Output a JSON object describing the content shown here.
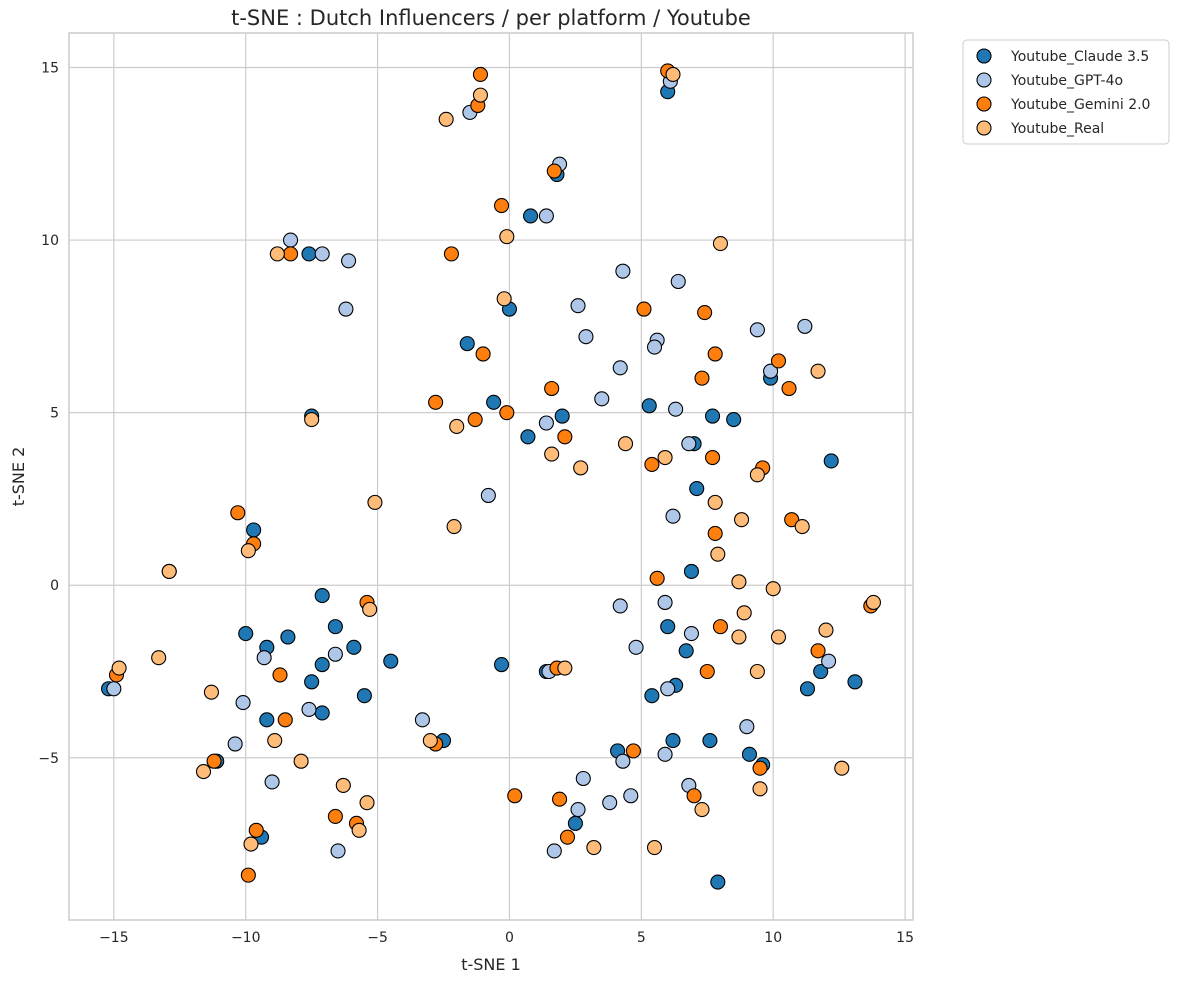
{
  "chart_data": {
    "type": "scatter",
    "title": "t-SNE : Dutch Influencers / per platform / Youtube",
    "xlabel": "t-SNE 1",
    "ylabel": "t-SNE 2",
    "xlim": [
      -16.7,
      15.3
    ],
    "ylim": [
      -9.7,
      16.0
    ],
    "x_ticks": [
      -15,
      -10,
      -5,
      0,
      5,
      10,
      15
    ],
    "y_ticks": [
      -5,
      0,
      5,
      10,
      15
    ],
    "x_tick_labels": [
      "−15",
      "−10",
      "−5",
      "0",
      "5",
      "10",
      "15"
    ],
    "y_tick_labels": [
      "−5",
      "0",
      "5",
      "10",
      "15"
    ],
    "grid": true,
    "legend_position": "outside-top-right",
    "series": [
      {
        "name": "Youtube_Claude 3.5",
        "color": "#1f77b4",
        "points": [
          [
            6.0,
            14.3
          ],
          [
            1.8,
            11.9
          ],
          [
            0.8,
            10.7
          ],
          [
            -7.6,
            9.6
          ],
          [
            0.0,
            8.0
          ],
          [
            -1.6,
            7.0
          ],
          [
            -0.6,
            5.3
          ],
          [
            2.0,
            4.9
          ],
          [
            5.3,
            5.2
          ],
          [
            7.7,
            4.9
          ],
          [
            8.5,
            4.8
          ],
          [
            0.7,
            4.3
          ],
          [
            7.0,
            4.1
          ],
          [
            9.9,
            6.0
          ],
          [
            12.2,
            3.6
          ],
          [
            7.1,
            2.8
          ],
          [
            6.9,
            0.4
          ],
          [
            -7.5,
            4.9
          ],
          [
            -9.7,
            1.6
          ],
          [
            -7.1,
            -0.3
          ],
          [
            -10.0,
            -1.4
          ],
          [
            -9.2,
            -1.8
          ],
          [
            -8.4,
            -1.5
          ],
          [
            -6.6,
            -1.2
          ],
          [
            -5.9,
            -1.8
          ],
          [
            -7.1,
            -2.3
          ],
          [
            -7.5,
            -2.8
          ],
          [
            -4.5,
            -2.2
          ],
          [
            -5.5,
            -3.2
          ],
          [
            -9.2,
            -3.9
          ],
          [
            -7.1,
            -3.7
          ],
          [
            -15.2,
            -3.0
          ],
          [
            -11.1,
            -5.1
          ],
          [
            -9.4,
            -7.3
          ],
          [
            -2.5,
            -4.5
          ],
          [
            -0.3,
            -2.3
          ],
          [
            1.4,
            -2.5
          ],
          [
            5.4,
            -3.2
          ],
          [
            6.3,
            -2.9
          ],
          [
            6.7,
            -1.9
          ],
          [
            6.0,
            -1.2
          ],
          [
            4.1,
            -4.8
          ],
          [
            6.2,
            -4.5
          ],
          [
            7.6,
            -4.5
          ],
          [
            9.1,
            -4.9
          ],
          [
            9.6,
            -5.2
          ],
          [
            11.3,
            -3.0
          ],
          [
            11.8,
            -2.5
          ],
          [
            13.1,
            -2.8
          ],
          [
            2.5,
            -6.9
          ],
          [
            7.9,
            -8.6
          ]
        ]
      },
      {
        "name": "Youtube_GPT-4o",
        "color": "#aec7e8",
        "points": [
          [
            6.1,
            14.6
          ],
          [
            1.9,
            12.2
          ],
          [
            1.4,
            10.7
          ],
          [
            -1.5,
            13.7
          ],
          [
            -8.3,
            10.0
          ],
          [
            -7.1,
            9.6
          ],
          [
            -6.1,
            9.4
          ],
          [
            -6.2,
            8.0
          ],
          [
            4.3,
            9.1
          ],
          [
            6.4,
            8.8
          ],
          [
            2.6,
            8.1
          ],
          [
            2.9,
            7.2
          ],
          [
            9.4,
            7.4
          ],
          [
            11.2,
            7.5
          ],
          [
            5.6,
            7.1
          ],
          [
            5.5,
            6.9
          ],
          [
            4.2,
            6.3
          ],
          [
            9.9,
            6.2
          ],
          [
            3.5,
            5.4
          ],
          [
            6.3,
            5.1
          ],
          [
            1.4,
            4.7
          ],
          [
            6.8,
            4.1
          ],
          [
            -0.8,
            2.6
          ],
          [
            6.2,
            2.0
          ],
          [
            -9.3,
            -2.1
          ],
          [
            -6.6,
            -2.0
          ],
          [
            -10.1,
            -3.4
          ],
          [
            -7.6,
            -3.6
          ],
          [
            -10.4,
            -4.6
          ],
          [
            -9.0,
            -5.7
          ],
          [
            -6.5,
            -7.7
          ],
          [
            -15.0,
            -3.0
          ],
          [
            -3.3,
            -3.9
          ],
          [
            1.5,
            -2.5
          ],
          [
            4.2,
            -0.6
          ],
          [
            5.9,
            -0.5
          ],
          [
            6.9,
            -1.4
          ],
          [
            4.8,
            -1.8
          ],
          [
            6.0,
            -3.0
          ],
          [
            12.1,
            -2.2
          ],
          [
            9.0,
            -4.1
          ],
          [
            4.3,
            -5.1
          ],
          [
            5.9,
            -4.9
          ],
          [
            6.8,
            -5.8
          ],
          [
            4.6,
            -6.1
          ],
          [
            2.8,
            -5.6
          ],
          [
            2.6,
            -6.5
          ],
          [
            3.8,
            -6.3
          ],
          [
            1.7,
            -7.7
          ]
        ]
      },
      {
        "name": "Youtube_Gemini 2.0",
        "color": "#ff7f0e",
        "points": [
          [
            -1.1,
            14.8
          ],
          [
            -1.2,
            13.9
          ],
          [
            6.0,
            14.9
          ],
          [
            1.7,
            12.0
          ],
          [
            -0.3,
            11.0
          ],
          [
            -2.2,
            9.6
          ],
          [
            -8.3,
            9.6
          ],
          [
            5.1,
            8.0
          ],
          [
            7.4,
            7.9
          ],
          [
            -1.0,
            6.7
          ],
          [
            7.8,
            6.7
          ],
          [
            10.2,
            6.5
          ],
          [
            7.3,
            6.0
          ],
          [
            1.6,
            5.7
          ],
          [
            10.6,
            5.7
          ],
          [
            -2.8,
            5.3
          ],
          [
            -0.1,
            5.0
          ],
          [
            -1.3,
            4.8
          ],
          [
            2.1,
            4.3
          ],
          [
            7.7,
            3.7
          ],
          [
            5.4,
            3.5
          ],
          [
            9.6,
            3.4
          ],
          [
            -10.3,
            2.1
          ],
          [
            -9.7,
            1.2
          ],
          [
            7.8,
            1.5
          ],
          [
            10.7,
            1.9
          ],
          [
            5.6,
            0.2
          ],
          [
            -12.9,
            0.4
          ],
          [
            -5.4,
            -0.5
          ],
          [
            -14.9,
            -2.6
          ],
          [
            -8.7,
            -2.6
          ],
          [
            -8.5,
            -3.9
          ],
          [
            1.8,
            -2.4
          ],
          [
            8.0,
            -1.2
          ],
          [
            11.7,
            -1.9
          ],
          [
            7.5,
            -2.5
          ],
          [
            13.7,
            -0.6
          ],
          [
            -2.8,
            -4.6
          ],
          [
            4.7,
            -4.8
          ],
          [
            9.5,
            -5.3
          ],
          [
            -11.2,
            -5.1
          ],
          [
            -9.6,
            -7.1
          ],
          [
            -9.9,
            -8.4
          ],
          [
            -6.6,
            -6.7
          ],
          [
            -5.8,
            -6.9
          ],
          [
            0.2,
            -6.1
          ],
          [
            1.9,
            -6.2
          ],
          [
            2.2,
            -7.3
          ],
          [
            7.0,
            -6.1
          ]
        ]
      },
      {
        "name": "Youtube_Real",
        "color": "#ffbb78",
        "points": [
          [
            -1.1,
            14.2
          ],
          [
            -2.4,
            13.5
          ],
          [
            6.2,
            14.8
          ],
          [
            8.0,
            9.9
          ],
          [
            -0.1,
            10.1
          ],
          [
            -8.8,
            9.6
          ],
          [
            -0.2,
            8.3
          ],
          [
            11.7,
            6.2
          ],
          [
            -7.5,
            4.8
          ],
          [
            -2.0,
            4.6
          ],
          [
            4.4,
            4.1
          ],
          [
            1.6,
            3.8
          ],
          [
            5.9,
            3.7
          ],
          [
            2.7,
            3.4
          ],
          [
            9.4,
            3.2
          ],
          [
            7.8,
            2.4
          ],
          [
            -5.1,
            2.4
          ],
          [
            -2.1,
            1.7
          ],
          [
            8.8,
            1.9
          ],
          [
            11.1,
            1.7
          ],
          [
            -9.9,
            1.0
          ],
          [
            7.9,
            0.9
          ],
          [
            -12.9,
            0.4
          ],
          [
            8.7,
            0.1
          ],
          [
            10.0,
            -0.1
          ],
          [
            13.8,
            -0.5
          ],
          [
            -5.3,
            -0.7
          ],
          [
            8.9,
            -0.8
          ],
          [
            8.7,
            -1.5
          ],
          [
            10.2,
            -1.5
          ],
          [
            12.0,
            -1.3
          ],
          [
            -13.3,
            -2.1
          ],
          [
            -14.8,
            -2.4
          ],
          [
            -11.3,
            -3.1
          ],
          [
            2.1,
            -2.4
          ],
          [
            9.4,
            -2.5
          ],
          [
            -8.9,
            -4.5
          ],
          [
            -3.0,
            -4.5
          ],
          [
            -7.9,
            -5.1
          ],
          [
            -11.6,
            -5.4
          ],
          [
            12.6,
            -5.3
          ],
          [
            -6.3,
            -5.8
          ],
          [
            9.5,
            -5.9
          ],
          [
            -5.4,
            -6.3
          ],
          [
            7.3,
            -6.5
          ],
          [
            -5.7,
            -7.1
          ],
          [
            -9.8,
            -7.5
          ],
          [
            3.2,
            -7.6
          ],
          [
            5.5,
            -7.6
          ]
        ]
      }
    ]
  }
}
